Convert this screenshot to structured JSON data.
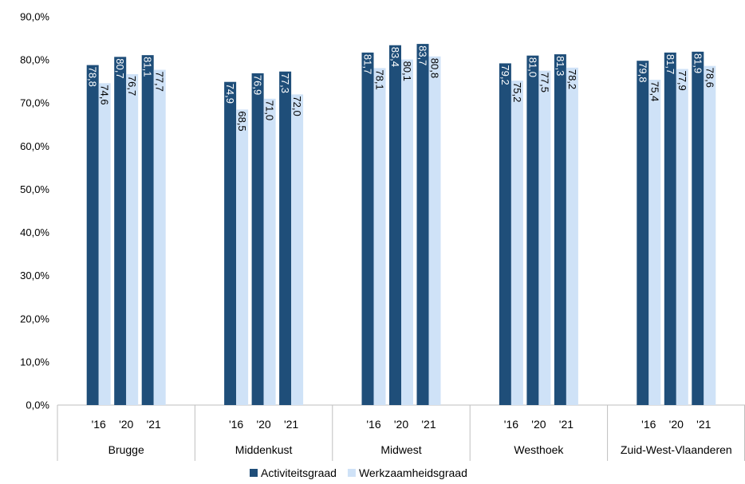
{
  "chart_data": {
    "type": "bar",
    "ylim": [
      0,
      90
    ],
    "y_ticks": [
      "0,0%",
      "10,0%",
      "20,0%",
      "30,0%",
      "40,0%",
      "50,0%",
      "60,0%",
      "70,0%",
      "80,0%",
      "90,0%"
    ],
    "grid": false,
    "legend_position": "bottom",
    "groups": [
      {
        "name": "Brugge",
        "years": [
          "'16",
          "'20",
          "'21"
        ]
      },
      {
        "name": "Middenkust",
        "years": [
          "'16",
          "'20",
          "'21"
        ]
      },
      {
        "name": "Midwest",
        "years": [
          "'16",
          "'20",
          "'21"
        ]
      },
      {
        "name": "Westhoek",
        "years": [
          "'16",
          "'20",
          "'21"
        ]
      },
      {
        "name": "Zuid-West-Vlaanderen",
        "years": [
          "'16",
          "'20",
          "'21"
        ]
      }
    ],
    "series": [
      {
        "name": "Activiteitsgraad",
        "color": "#1f4e79",
        "label_color": "#ffffff",
        "values": [
          78.8,
          80.7,
          81.1,
          74.9,
          76.9,
          77.3,
          81.7,
          83.4,
          83.7,
          79.2,
          81.0,
          81.3,
          79.8,
          81.7,
          81.9
        ],
        "labels": [
          "78,8",
          "80,7",
          "81,1",
          "74,9",
          "76,9",
          "77,3",
          "81,7",
          "83,4",
          "83,7",
          "79,2",
          "81,0",
          "81,3",
          "79,8",
          "81,7",
          "81,9"
        ]
      },
      {
        "name": "Werkzaamheidsgraad",
        "color": "#cfe2f7",
        "label_color": "#000000",
        "values": [
          74.6,
          76.7,
          77.7,
          68.5,
          71.0,
          72.0,
          78.1,
          80.1,
          80.8,
          75.2,
          77.5,
          78.2,
          75.4,
          77.9,
          78.6
        ],
        "labels": [
          "74,6",
          "76,7",
          "77,7",
          "68,5",
          "71,0",
          "72,0",
          "78,1",
          "80,1",
          "80,8",
          "75,2",
          "77,5",
          "78,2",
          "75,4",
          "77,9",
          "78,6"
        ]
      }
    ]
  }
}
